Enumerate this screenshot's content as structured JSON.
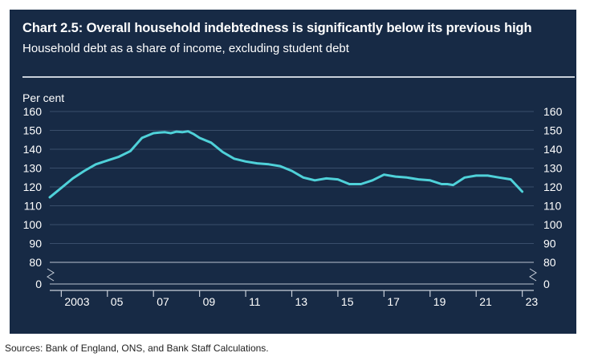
{
  "title": "Chart 2.5: Overall household indebtedness is significantly below its previous high",
  "subtitle": "Household debt as a share of income, excluding student debt",
  "source": "Sources: Bank of England, ONS, and Bank Staff Calculations.",
  "colors": {
    "background": "#172a45",
    "line": "#4fd1d9",
    "text": "#ffffff",
    "grid": "#3a4e6b"
  },
  "chart_data": {
    "type": "line",
    "ylabel": "Per cent",
    "ylim": [
      80,
      160
    ],
    "y_ticks": [
      "160",
      "150",
      "140",
      "130",
      "120",
      "110",
      "100",
      "90",
      "80",
      "0"
    ],
    "y_tick_values": [
      160,
      150,
      140,
      130,
      120,
      110,
      100,
      90,
      80
    ],
    "y_axis_break": true,
    "x_ticks": [
      "2003",
      "05",
      "07",
      "09",
      "11",
      "13",
      "15",
      "17",
      "19",
      "21",
      "23"
    ],
    "x_tick_values": [
      2003,
      2005,
      2007,
      2009,
      2011,
      2013,
      2015,
      2017,
      2019,
      2021,
      2023
    ],
    "xlim": [
      2002.5,
      2023.5
    ],
    "grid": true,
    "series": [
      {
        "x": [
          2002.5,
          2003.0,
          2003.5,
          2004.0,
          2004.5,
          2005.0,
          2005.5,
          2006.0,
          2006.5,
          2007.0,
          2007.25,
          2007.5,
          2007.75,
          2008.0,
          2008.25,
          2008.5,
          2008.75,
          2009.0,
          2009.5,
          2010.0,
          2010.5,
          2011.0,
          2011.5,
          2012.0,
          2012.5,
          2013.0,
          2013.5,
          2014.0,
          2014.5,
          2015.0,
          2015.5,
          2016.0,
          2016.5,
          2017.0,
          2017.5,
          2018.0,
          2018.5,
          2019.0,
          2019.5,
          2019.75,
          2020.0,
          2020.5,
          2021.0,
          2021.5,
          2022.0,
          2022.5,
          2023.0
        ],
        "y": [
          114.5,
          119.5,
          124.5,
          128.5,
          132,
          134,
          136,
          139,
          146,
          148.5,
          148.8,
          149,
          148.5,
          149.3,
          149,
          149.5,
          148,
          146,
          143.5,
          138.5,
          135,
          133.5,
          132.5,
          132,
          131,
          128.5,
          125,
          123.5,
          124.5,
          124,
          121.5,
          121.5,
          123.5,
          126.5,
          125.5,
          125,
          124,
          123.5,
          121.5,
          121.5,
          121,
          125,
          126,
          126,
          125,
          124,
          117.5
        ]
      }
    ]
  }
}
